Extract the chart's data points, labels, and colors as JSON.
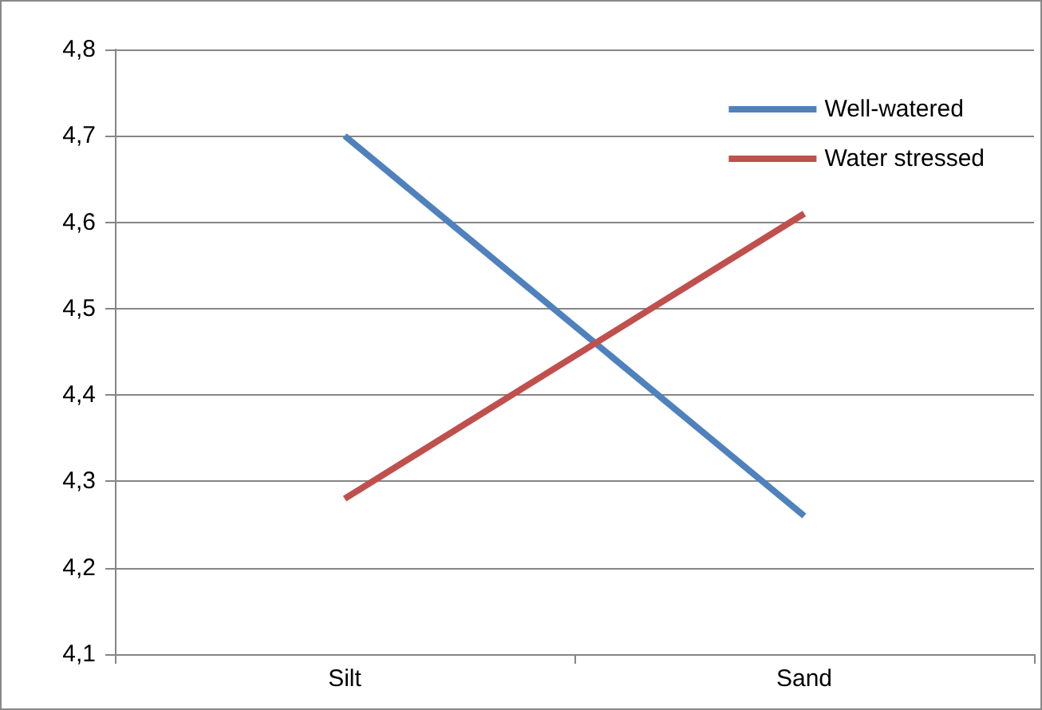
{
  "chart_data": {
    "type": "line",
    "categories": [
      "Silt",
      "Sand"
    ],
    "series": [
      {
        "name": "Well-watered",
        "color": "#4f81bd",
        "values": [
          4.7,
          4.26
        ]
      },
      {
        "name": "Water stressed",
        "color": "#c0504d",
        "values": [
          4.28,
          4.61
        ]
      }
    ],
    "ylim": [
      4.1,
      4.8
    ],
    "yticks": [
      {
        "value": 4.1,
        "label": "4,1"
      },
      {
        "value": 4.2,
        "label": "4,2"
      },
      {
        "value": 4.3,
        "label": "4,3"
      },
      {
        "value": 4.4,
        "label": "4,4"
      },
      {
        "value": 4.5,
        "label": "4,5"
      },
      {
        "value": 4.6,
        "label": "4,6"
      },
      {
        "value": 4.7,
        "label": "4,7"
      },
      {
        "value": 4.8,
        "label": "4,8"
      }
    ],
    "grid": "y",
    "legend": "top right",
    "marker": "none",
    "line_style": "solid"
  }
}
